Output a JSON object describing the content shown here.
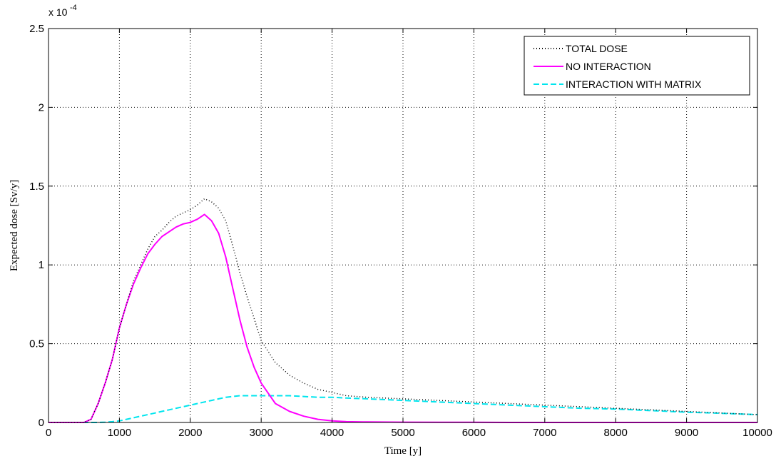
{
  "chart_data": {
    "type": "line",
    "title": "",
    "xlabel": "Time [y]",
    "ylabel": "Expected dose [Sv/y]",
    "y_scale_label": "x 10",
    "y_scale_exponent": "-4",
    "xlim": [
      0,
      10000
    ],
    "ylim": [
      0,
      2.5
    ],
    "x_ticks": [
      0,
      1000,
      2000,
      3000,
      4000,
      5000,
      6000,
      7000,
      8000,
      9000,
      10000
    ],
    "x_tick_labels": [
      "0",
      "1000",
      "2000",
      "3000",
      "4000",
      "5000",
      "6000",
      "7000",
      "8000",
      "9000",
      "10000"
    ],
    "y_ticks": [
      0,
      0.5,
      1,
      1.5,
      2,
      2.5
    ],
    "y_tick_labels": [
      "0",
      "0.5",
      "1",
      "1.5",
      "2",
      "2.5"
    ],
    "grid": true,
    "legend_position": "top-right",
    "x": [
      0,
      200,
      400,
      500,
      600,
      700,
      800,
      900,
      1000,
      1100,
      1200,
      1300,
      1400,
      1500,
      1600,
      1700,
      1800,
      1900,
      2000,
      2100,
      2200,
      2300,
      2400,
      2500,
      2600,
      2700,
      2800,
      2900,
      3000,
      3200,
      3400,
      3600,
      3800,
      4000,
      4200,
      4500,
      5000,
      5500,
      6000,
      6500,
      7000,
      7500,
      8000,
      8500,
      9000,
      9500,
      10000
    ],
    "series": [
      {
        "name": "TOTAL DOSE",
        "color": "#000000",
        "style": "dotted",
        "values": [
          0,
          0,
          0,
          0,
          0.02,
          0.12,
          0.25,
          0.4,
          0.6,
          0.75,
          0.9,
          1.0,
          1.1,
          1.18,
          1.22,
          1.27,
          1.31,
          1.33,
          1.35,
          1.38,
          1.42,
          1.4,
          1.36,
          1.28,
          1.12,
          0.95,
          0.8,
          0.66,
          0.52,
          0.38,
          0.3,
          0.25,
          0.21,
          0.19,
          0.17,
          0.16,
          0.15,
          0.14,
          0.13,
          0.12,
          0.11,
          0.1,
          0.09,
          0.08,
          0.07,
          0.06,
          0.05
        ]
      },
      {
        "name": "NO INTERACTION",
        "color": "#ff00ff",
        "style": "solid",
        "values": [
          0,
          0,
          0,
          0,
          0.02,
          0.12,
          0.25,
          0.4,
          0.6,
          0.75,
          0.88,
          0.98,
          1.07,
          1.13,
          1.18,
          1.21,
          1.24,
          1.26,
          1.27,
          1.29,
          1.32,
          1.28,
          1.2,
          1.05,
          0.85,
          0.65,
          0.48,
          0.35,
          0.25,
          0.12,
          0.07,
          0.04,
          0.02,
          0.01,
          0.005,
          0.003,
          0.002,
          0.001,
          0.001,
          0,
          0,
          0,
          0,
          0,
          0,
          0,
          0
        ]
      },
      {
        "name": "INTERACTION WITH MATRIX",
        "color": "#00e5ee",
        "style": "dashed",
        "values": [
          0,
          0,
          0,
          0,
          0,
          0,
          0.002,
          0.005,
          0.01,
          0.02,
          0.03,
          0.04,
          0.05,
          0.06,
          0.07,
          0.08,
          0.09,
          0.1,
          0.11,
          0.12,
          0.13,
          0.14,
          0.15,
          0.16,
          0.165,
          0.17,
          0.17,
          0.17,
          0.17,
          0.17,
          0.17,
          0.165,
          0.16,
          0.16,
          0.155,
          0.15,
          0.14,
          0.13,
          0.12,
          0.11,
          0.1,
          0.09,
          0.085,
          0.075,
          0.065,
          0.058,
          0.05
        ]
      }
    ]
  }
}
